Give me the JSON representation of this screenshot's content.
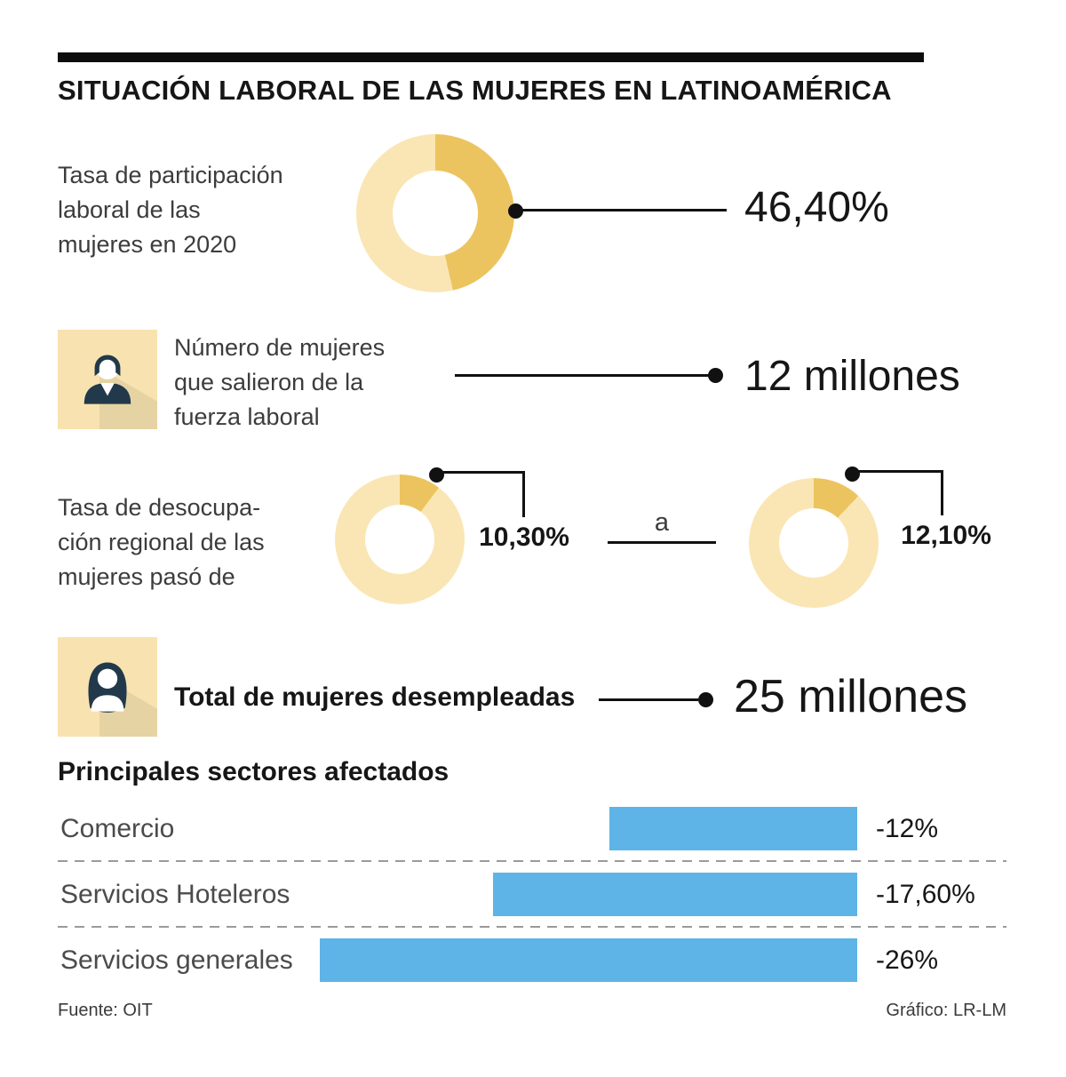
{
  "title": "SITUACIÓN LABORAL DE LAS MUJERES EN LATINOAMÉRICA",
  "stats": {
    "participation": {
      "label": "Tasa de participación\nlaboral de las\nmujeres en 2020",
      "value": "46,40%",
      "pct": 46.4
    },
    "left_workforce": {
      "label": "Número de mujeres\nque salieron de la\nfuerza laboral",
      "value": "12 millones"
    },
    "unemployment": {
      "label": "Tasa de desocupa-\nción regional de las\nmujeres pasó de",
      "from_value": "10,30%",
      "from_pct": 10.3,
      "connector": "a",
      "to_value": "12,10%",
      "to_pct": 12.1
    },
    "total_unemployed": {
      "label": "Total de mujeres desempleadas",
      "value": "25 millones"
    }
  },
  "sectors": {
    "title": "Principales sectores afectados",
    "rows": [
      {
        "label": "Comercio",
        "value": "-12%",
        "pct": 12
      },
      {
        "label": "Servicios Hoteleros",
        "value": "-17,60%",
        "pct": 17.6
      },
      {
        "label": "Servicios generales",
        "value": "-26%",
        "pct": 26
      }
    ]
  },
  "footer": {
    "source": "Fuente: OIT",
    "credit": "Gráfico: LR-LM"
  },
  "icons": {
    "left_workforce": "woman-bust-icon",
    "total_unemployed": "woman-long-hair-icon"
  },
  "colors": {
    "donut_dark": "#ecc45f",
    "donut_light": "#fae6b4",
    "bar_blue": "#5eb4e7",
    "icon_bg": "#f8e3b0",
    "icon_figure": "#21394a",
    "line_black": "#111111",
    "text_dark": "#161616",
    "text_body": "#3c3c3c",
    "dash_gray": "#9a9a9a"
  },
  "chart_data": [
    {
      "type": "pie",
      "title": "Tasa de participación laboral de las mujeres en 2020",
      "labels": [
        "Tasa de participación",
        "Resto"
      ],
      "values": [
        46.4,
        53.6
      ],
      "unit": "%",
      "annotation": "46,40%"
    },
    {
      "type": "pie",
      "title": "Tasa de desocupación regional de las mujeres pasó de",
      "labels": [
        "Tasa de desocupación",
        "Resto"
      ],
      "values": [
        10.3,
        89.7
      ],
      "unit": "%",
      "annotation": "10,30%"
    },
    {
      "type": "pie",
      "title": "Tasa de desocupación regional de las mujeres pasó a",
      "labels": [
        "Tasa de desocupación",
        "Resto"
      ],
      "values": [
        12.1,
        87.9
      ],
      "unit": "%",
      "annotation": "12,10%"
    },
    {
      "type": "bar",
      "title": "Principales sectores afectados",
      "orientation": "horizontal",
      "categories": [
        "Comercio",
        "Servicios Hoteleros",
        "Servicios generales"
      ],
      "values": [
        -12,
        -17.6,
        -26
      ],
      "labels": [
        "-12%",
        "-17,60%",
        "-26%"
      ]
    }
  ]
}
